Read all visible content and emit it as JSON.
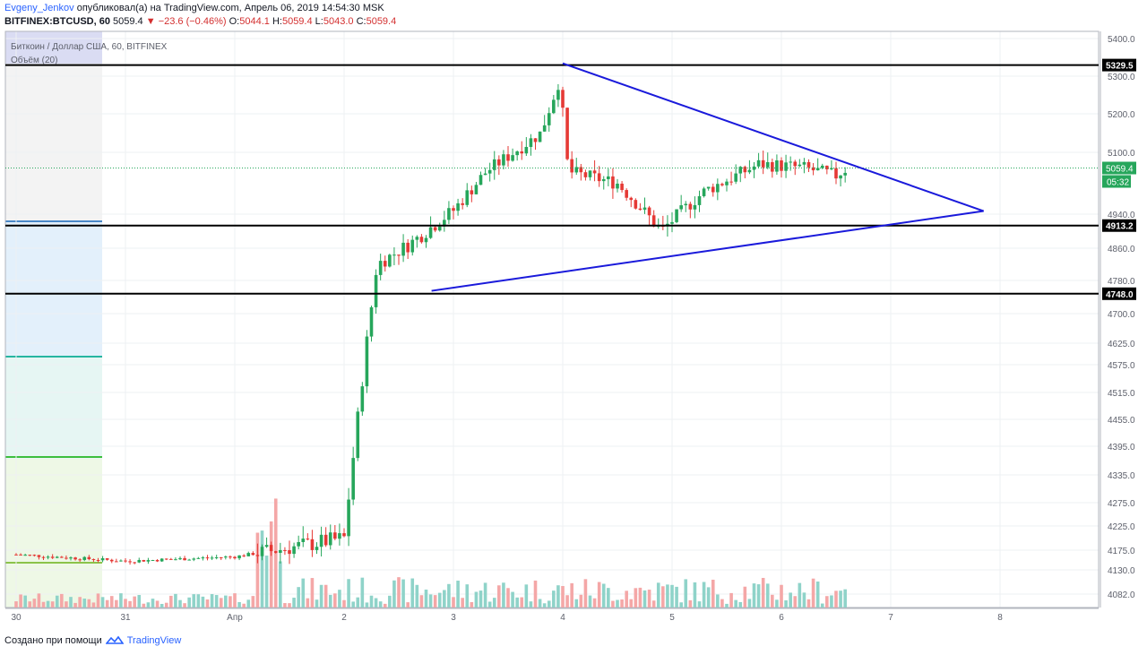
{
  "header": {
    "author": "Evgeny_Jenkov",
    "published_text": "опубликовал(а) на TradingView.com, Апрель 06, 2019 14:54:30 MSK",
    "symbol": "BITFINEX:BTCUSD, 60",
    "last": "5059.4",
    "change": "−23.6 (−0.46%)",
    "o_label": "O:",
    "o_value": "5044.1",
    "h_label": "H:",
    "h_value": "5059.4",
    "l_label": "L:",
    "l_value": "5043.0",
    "c_label": "C:",
    "c_value": "5059.4"
  },
  "legend": {
    "title": "Биткоин / Доллар США, 60, BITFINEX",
    "volume": "Объём (20)"
  },
  "footer": {
    "created_with": "Создано при помощи",
    "brand": "TradingView"
  },
  "colors": {
    "up": "#26a65b",
    "down": "#e53935",
    "vol_up": "#8fd3c9",
    "vol_down": "#f4a7a7",
    "trendline": "#1a1adb",
    "level": "#000000",
    "price_label_bg": "#26a65b"
  },
  "chart_data": {
    "type": "candlestick",
    "symbol": "BITFINEX:BTCUSD",
    "interval": "60",
    "y_ticks": [
      4082.0,
      4130.0,
      4175.0,
      4225.0,
      4275.0,
      4335.0,
      4395.0,
      4455.0,
      4515.0,
      4575.0,
      4625.0,
      4700.0,
      4780.0,
      4860.0,
      4940.0,
      5100.0,
      5200.0,
      5300.0,
      5400.0
    ],
    "x_ticks": [
      "30",
      "31",
      "Апр",
      "2",
      "3",
      "4",
      "5",
      "6",
      "7",
      "8"
    ],
    "levels": [
      {
        "price": 5329.5,
        "label": "5329.5"
      },
      {
        "price": 4913.2,
        "label": "4913.2"
      },
      {
        "price": 4748.0,
        "label": "4748.0"
      }
    ],
    "last_price": {
      "label": "5059.4",
      "countdown": "05:32"
    },
    "triangle": {
      "upper": [
        [
          "4",
          5334
        ],
        [
          "7.85",
          4948
        ]
      ],
      "lower": [
        [
          "2.8",
          4755
        ],
        [
          "7.85",
          4948
        ]
      ]
    },
    "ohlc_keypoints": [
      {
        "t": "30",
        "close": 4165
      },
      {
        "t": "31",
        "close": 4150
      },
      {
        "t": "Апр",
        "close": 4160
      },
      {
        "t": "2",
        "close": 4200
      },
      {
        "t": "2.3",
        "close": 4820
      },
      {
        "t": "2.6",
        "close": 4870
      },
      {
        "t": "3",
        "close": 4950
      },
      {
        "t": "3.3",
        "close": 5050
      },
      {
        "t": "3.8",
        "close": 5150
      },
      {
        "t": "3.97",
        "close": 5290
      },
      {
        "t": "4.05",
        "close": 5050
      },
      {
        "t": "4.5",
        "close": 5020
      },
      {
        "t": "4.9",
        "close": 4900
      },
      {
        "t": "5.3",
        "close": 5000
      },
      {
        "t": "5.8",
        "close": 5070
      },
      {
        "t": "6.2",
        "close": 5060
      },
      {
        "t": "6.5",
        "close": 5040
      },
      {
        "t": "6.6",
        "close": 5059.4
      }
    ]
  }
}
